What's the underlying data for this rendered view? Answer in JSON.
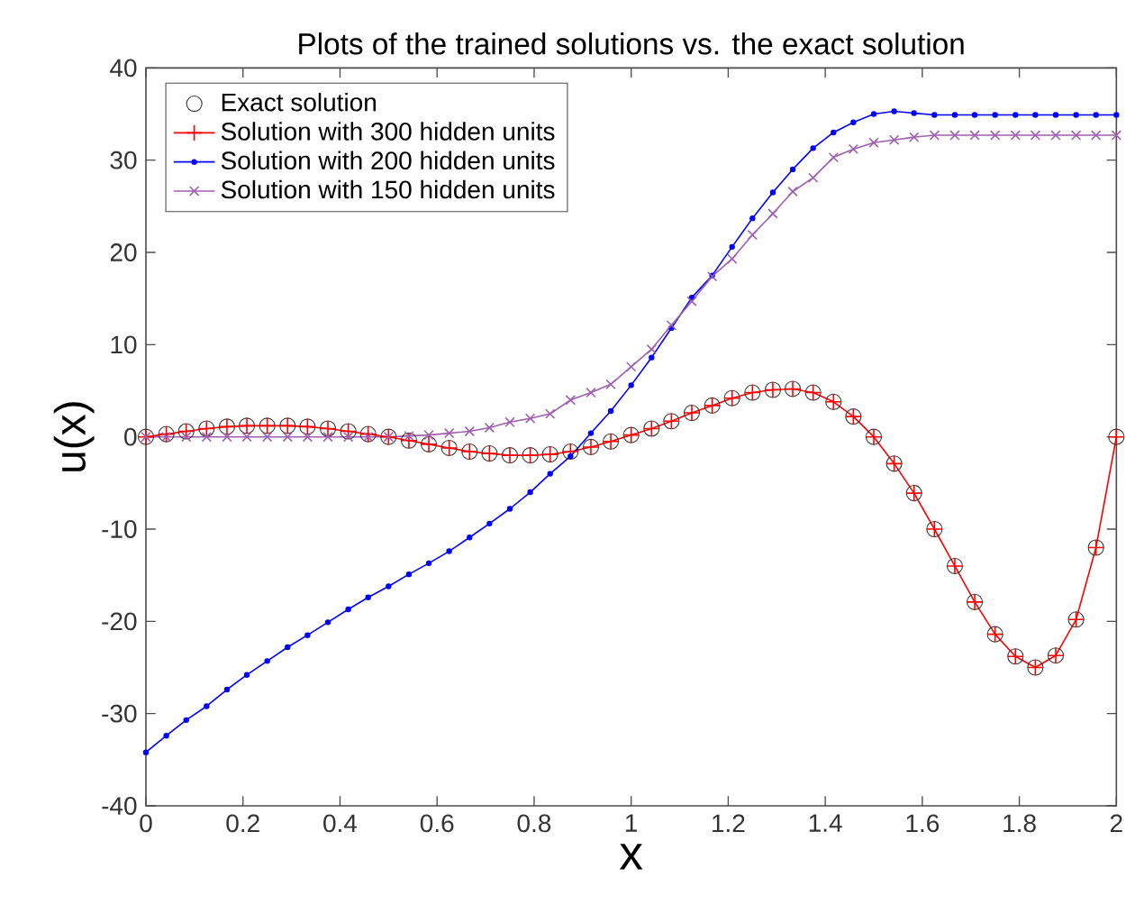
{
  "chart_data": {
    "type": "line",
    "title": "Plots of the trained solutions vs. the exact solution",
    "xlabel": "x",
    "ylabel": "u(x)",
    "x": [
      0,
      0.042,
      0.083,
      0.125,
      0.167,
      0.208,
      0.25,
      0.292,
      0.333,
      0.375,
      0.417,
      0.458,
      0.5,
      0.542,
      0.583,
      0.625,
      0.667,
      0.708,
      0.75,
      0.792,
      0.833,
      0.875,
      0.917,
      0.958,
      1.0,
      1.042,
      1.083,
      1.125,
      1.167,
      1.208,
      1.25,
      1.292,
      1.333,
      1.375,
      1.417,
      1.458,
      1.5,
      1.542,
      1.583,
      1.625,
      1.667,
      1.708,
      1.75,
      1.792,
      1.833,
      1.875,
      1.917,
      1.958,
      2.0
    ],
    "xlim": [
      0,
      2
    ],
    "ylim": [
      -40,
      40
    ],
    "xticks": [
      0,
      0.2,
      0.4,
      0.6,
      0.8,
      1,
      1.2,
      1.4,
      1.6,
      1.8,
      2
    ],
    "yticks": [
      -40,
      -30,
      -20,
      -10,
      0,
      10,
      20,
      30,
      40
    ],
    "grid": false,
    "legend": "top left",
    "series": [
      {
        "name": "Exact solution",
        "type": "scatter",
        "marker": "circle",
        "color": "#333333",
        "values": [
          0,
          0.3,
          0.6,
          0.9,
          1.1,
          1.2,
          1.2,
          1.2,
          1.1,
          0.9,
          0.6,
          0.3,
          0,
          -0.4,
          -0.8,
          -1.2,
          -1.6,
          -1.8,
          -2.0,
          -2.0,
          -1.9,
          -1.6,
          -1.1,
          -0.5,
          0.2,
          0.9,
          1.7,
          2.6,
          3.4,
          4.2,
          4.8,
          5.1,
          5.2,
          4.8,
          3.8,
          2.2,
          0,
          -2.9,
          -6.1,
          -10,
          -14,
          -17.9,
          -21.4,
          -23.8,
          -25,
          -23.7,
          -19.8,
          -12,
          0
        ]
      },
      {
        "name": "Solution with 300 hidden units",
        "marker": "plus",
        "color": "#ff0000",
        "values": [
          0,
          0.3,
          0.6,
          0.9,
          1.1,
          1.2,
          1.2,
          1.2,
          1.1,
          0.9,
          0.6,
          0.3,
          0,
          -0.4,
          -0.8,
          -1.2,
          -1.6,
          -1.8,
          -2.0,
          -2.0,
          -1.9,
          -1.6,
          -1.1,
          -0.5,
          0.2,
          0.9,
          1.7,
          2.6,
          3.4,
          4.2,
          4.8,
          5.1,
          5.2,
          4.8,
          3.8,
          2.2,
          0,
          -2.9,
          -6.1,
          -10,
          -14,
          -17.9,
          -21.4,
          -23.8,
          -25,
          -23.7,
          -19.8,
          -12,
          0
        ]
      },
      {
        "name": "Solution with 200 hidden units",
        "marker": "dot",
        "color": "#0000ff",
        "values": [
          -34.2,
          -32.4,
          -30.7,
          -29.2,
          -27.4,
          -25.8,
          -24.3,
          -22.8,
          -21.5,
          -20.1,
          -18.7,
          -17.4,
          -16.2,
          -14.9,
          -13.7,
          -12.4,
          -10.9,
          -9.4,
          -7.8,
          -6.0,
          -4.0,
          -2.1,
          0.4,
          2.8,
          5.6,
          8.6,
          11.8,
          15.1,
          17.5,
          20.6,
          23.7,
          26.5,
          29.0,
          31.3,
          33.0,
          34.1,
          35.0,
          35.3,
          35.1,
          34.9,
          34.9,
          34.9,
          34.9,
          34.9,
          34.9,
          34.9,
          34.9,
          34.9,
          34.9
        ]
      },
      {
        "name": "Solution with 150 hidden units",
        "marker": "cross",
        "color": "#9e5fb0",
        "values": [
          0,
          0,
          0,
          0,
          0,
          0,
          0,
          0,
          0,
          0,
          0,
          0,
          0,
          0.1,
          0.2,
          0.4,
          0.6,
          1.0,
          1.6,
          2.0,
          2.5,
          4.0,
          4.8,
          5.7,
          7.6,
          9.5,
          12.1,
          14.7,
          17.4,
          19.3,
          21.9,
          24.2,
          26.6,
          28.1,
          30.3,
          31.2,
          31.9,
          32.2,
          32.5,
          32.7,
          32.7,
          32.7,
          32.7,
          32.7,
          32.7,
          32.7,
          32.7,
          32.7,
          32.7
        ]
      }
    ]
  }
}
